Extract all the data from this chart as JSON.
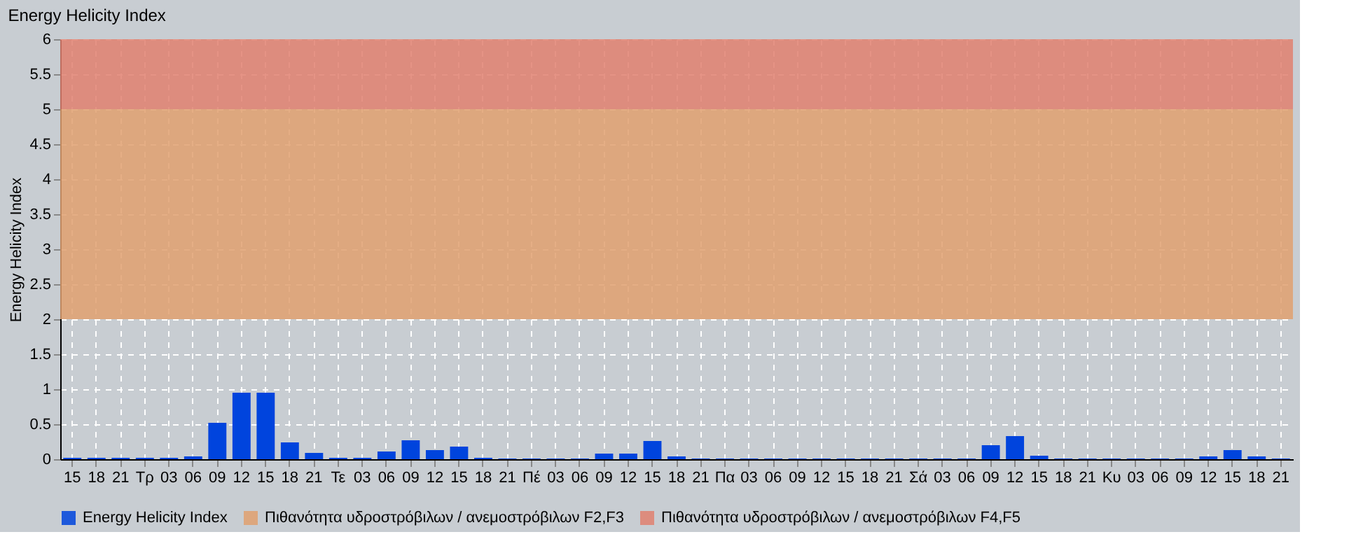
{
  "chart_data": {
    "type": "bar",
    "title": "Energy Helicity Index",
    "ylabel": "Energy Helicity Index",
    "categories": [
      "15",
      "18",
      "21",
      "Τρ",
      "03",
      "06",
      "09",
      "12",
      "15",
      "18",
      "21",
      "Τε",
      "03",
      "06",
      "09",
      "12",
      "15",
      "18",
      "21",
      "Πέ",
      "03",
      "06",
      "09",
      "12",
      "15",
      "18",
      "21",
      "Πα",
      "03",
      "06",
      "09",
      "12",
      "15",
      "18",
      "21",
      "Σά",
      "03",
      "06",
      "09",
      "12",
      "15",
      "18",
      "21",
      "Κυ",
      "03",
      "06",
      "09",
      "12",
      "15",
      "18",
      "21"
    ],
    "series": [
      {
        "name": "Energy Helicity Index",
        "color": "#0044dd",
        "values": [
          0.02,
          0.02,
          0.02,
          0.02,
          0.02,
          0.04,
          0.52,
          0.95,
          0.95,
          0.24,
          0.09,
          0.02,
          0.02,
          0.11,
          0.27,
          0.13,
          0.18,
          0.02,
          0.01,
          0.01,
          0.01,
          0.01,
          0.08,
          0.08,
          0.26,
          0.04,
          0.01,
          0.01,
          0.01,
          0.01,
          0.01,
          0.01,
          0.01,
          0.01,
          0.01,
          0.01,
          0.01,
          0.01,
          0.2,
          0.33,
          0.05,
          0.01,
          0.01,
          0.01,
          0.01,
          0.01,
          0.01,
          0.04,
          0.13,
          0.04,
          0.01
        ]
      }
    ],
    "ylim": [
      0,
      6
    ],
    "yticks": [
      0,
      0.5,
      1,
      1.5,
      2,
      2.5,
      3,
      3.5,
      4,
      4.5,
      5,
      5.5,
      6
    ],
    "bands": [
      {
        "axis": "y",
        "from": 2,
        "to": 5,
        "label": "Πιθανότητα υδροστρόβιλων / ανεμοστρόβιλων F2,F3",
        "color": "#e0a070"
      },
      {
        "axis": "y",
        "from": 5,
        "to": 6,
        "label": "Πιθανότητα υδροστρόβιλων / ανεμοστρόβιλων F4,F5",
        "color": "#e08070"
      }
    ],
    "grid": true,
    "legend": "bottom"
  }
}
